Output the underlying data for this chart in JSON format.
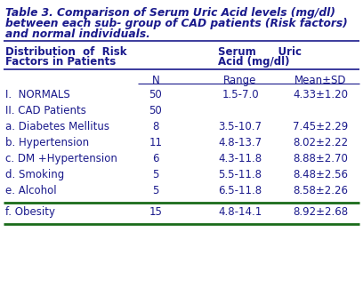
{
  "title_line1": "Table 3. Comparison of Serum Uric Acid levels (mg/dl)",
  "title_line2": "between each sub- group of CAD patients (Risk factors)",
  "title_line3": "and normal individuals.",
  "col_header_left1": "Distribution  of  Risk",
  "col_header_left2": "Factors in Patients",
  "col_header_right1": "Serum      Uric",
  "col_header_right2": "Acid (mg/dl)",
  "sub_headers": [
    "N",
    "Range",
    "Mean±SD"
  ],
  "rows": [
    [
      "I.  NORMALS",
      "50",
      "1.5-7.0",
      "4.33±1.20"
    ],
    [
      "II. CAD Patients",
      "50",
      "",
      ""
    ],
    [
      "a. Diabetes Mellitus",
      "8",
      "3.5-10.7",
      "7.45±2.29"
    ],
    [
      "b. Hypertension",
      "11",
      "4.8-13.7",
      "8.02±2.22"
    ],
    [
      "c. DM +Hypertension",
      "6",
      "4.3-11.8",
      "8.88±2.70"
    ],
    [
      "d. Smoking",
      "5",
      "5.5-11.8",
      "8.48±2.56"
    ],
    [
      "e. Alcohol",
      "5",
      "6.5-11.8",
      "8.58±2.26"
    ]
  ],
  "last_row": [
    "f. Obesity",
    "15",
    "4.8-14.1",
    "8.92±2.68"
  ],
  "bg_color": "#ffffff",
  "text_color": "#1a1a8c",
  "green_color": "#1a6b1a",
  "dark_color": "#1a1a8c",
  "title_fontsize": 8.8,
  "body_fontsize": 8.5,
  "header_fontsize": 8.5
}
